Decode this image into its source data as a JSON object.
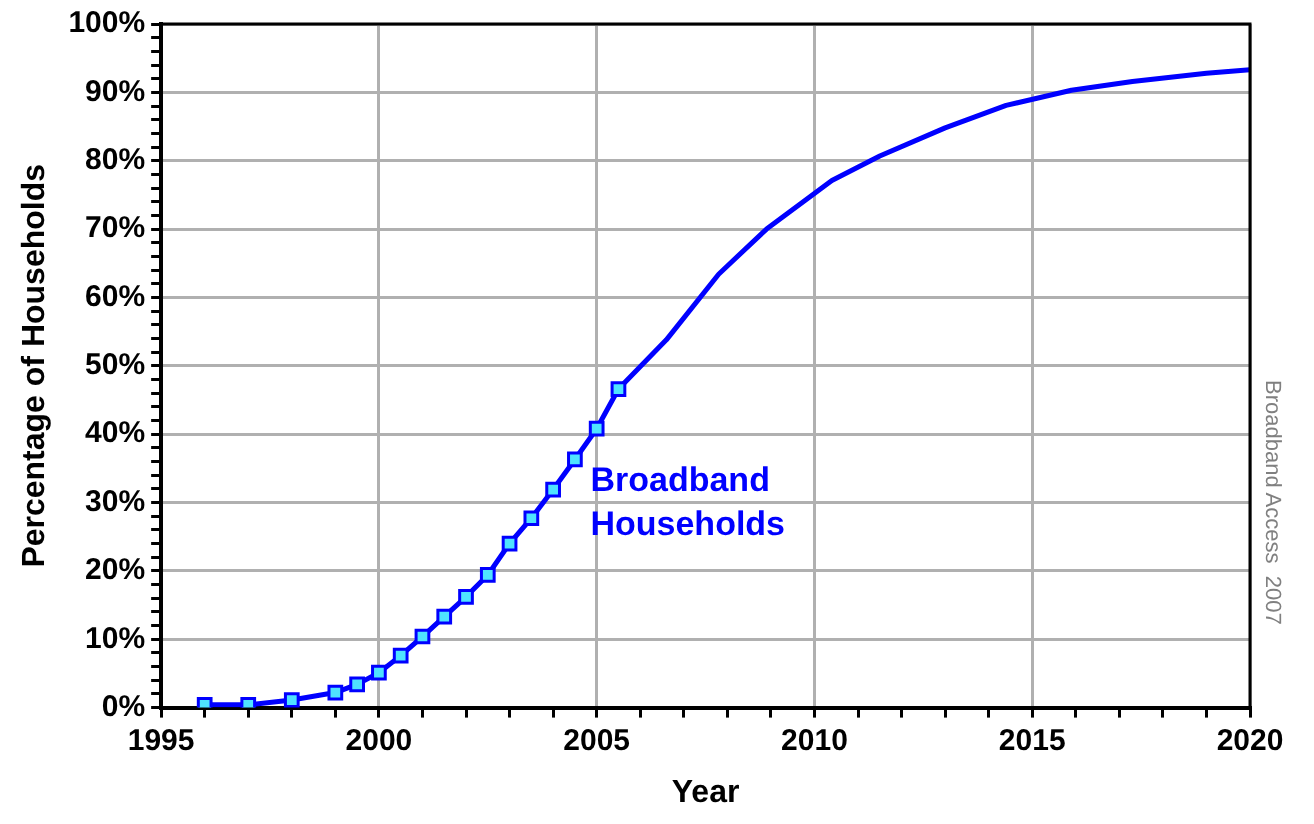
{
  "chart_data": {
    "type": "line",
    "xlabel": "Year",
    "ylabel": "Percentage of Households",
    "annotations": [
      "Broadband Access  2007"
    ],
    "xlim": [
      1995,
      2020
    ],
    "xticks": [
      1995,
      {
        "value": 1996,
        "label": null
      },
      {
        "value": 1997,
        "label": null
      },
      {
        "value": 1998,
        "label": null
      },
      {
        "value": 1999,
        "label": null
      },
      2000,
      {
        "value": 2001,
        "label": null
      },
      {
        "value": 2002,
        "label": null
      },
      {
        "value": 2003,
        "label": null
      },
      {
        "value": 2004,
        "label": null
      },
      2005,
      {
        "value": 2006,
        "label": null
      },
      {
        "value": 2007,
        "label": null
      },
      {
        "value": 2008,
        "label": null
      },
      {
        "value": 2009,
        "label": null
      },
      2010,
      {
        "value": 2011,
        "label": null
      },
      {
        "value": 2012,
        "label": null
      },
      {
        "value": 2013,
        "label": null
      },
      {
        "value": 2014,
        "label": null
      },
      2015,
      {
        "value": 2016,
        "label": null
      },
      {
        "value": 2017,
        "label": null
      },
      {
        "value": 2018,
        "label": null
      },
      {
        "value": 2019,
        "label": null
      },
      2020
    ],
    "ylim": [
      0,
      100
    ],
    "yticks": [
      {
        "value": 0,
        "label": "0%"
      },
      {
        "value": 2,
        "label": null
      },
      {
        "value": 4,
        "label": null
      },
      {
        "value": 6,
        "label": null
      },
      {
        "value": 8,
        "label": null
      },
      {
        "value": 10,
        "label": "10%"
      },
      {
        "value": 12,
        "label": null
      },
      {
        "value": 14,
        "label": null
      },
      {
        "value": 16,
        "label": null
      },
      {
        "value": 18,
        "label": null
      },
      {
        "value": 20,
        "label": "20%"
      },
      {
        "value": 22,
        "label": null
      },
      {
        "value": 24,
        "label": null
      },
      {
        "value": 26,
        "label": null
      },
      {
        "value": 28,
        "label": null
      },
      {
        "value": 30,
        "label": "30%"
      },
      {
        "value": 32,
        "label": null
      },
      {
        "value": 34,
        "label": null
      },
      {
        "value": 36,
        "label": null
      },
      {
        "value": 38,
        "label": null
      },
      {
        "value": 40,
        "label": "40%"
      },
      {
        "value": 42,
        "label": null
      },
      {
        "value": 44,
        "label": null
      },
      {
        "value": 46,
        "label": null
      },
      {
        "value": 48,
        "label": null
      },
      {
        "value": 50,
        "label": "50%"
      },
      {
        "value": 52,
        "label": null
      },
      {
        "value": 54,
        "label": null
      },
      {
        "value": 56,
        "label": null
      },
      {
        "value": 58,
        "label": null
      },
      {
        "value": 60,
        "label": "60%"
      },
      {
        "value": 62,
        "label": null
      },
      {
        "value": 64,
        "label": null
      },
      {
        "value": 66,
        "label": null
      },
      {
        "value": 68,
        "label": null
      },
      {
        "value": 70,
        "label": "70%"
      },
      {
        "value": 72,
        "label": null
      },
      {
        "value": 74,
        "label": null
      },
      {
        "value": 76,
        "label": null
      },
      {
        "value": 78,
        "label": null
      },
      {
        "value": 80,
        "label": "80%"
      },
      {
        "value": 82,
        "label": null
      },
      {
        "value": 84,
        "label": null
      },
      {
        "value": 86,
        "label": null
      },
      {
        "value": 88,
        "label": null
      },
      {
        "value": 90,
        "label": "90%"
      },
      {
        "value": 92,
        "label": null
      },
      {
        "value": 94,
        "label": null
      },
      {
        "value": 96,
        "label": null
      },
      {
        "value": 98,
        "label": null
      },
      {
        "value": 100,
        "label": "100%"
      }
    ],
    "grid": true,
    "legend": false,
    "series": [
      {
        "name": "Broadband Households",
        "color": "#0000ff",
        "marker": "square",
        "x": [
          1996,
          1997,
          1998,
          1999,
          1999.5,
          2000,
          2000.5,
          2001,
          2001.5,
          2002,
          2002.5,
          2003,
          2003.5,
          2004,
          2004.5,
          2005,
          2005.5
        ],
        "values": [
          0.4,
          0.4,
          1.1,
          2.2,
          3.4,
          5.1,
          7.6,
          10.4,
          13.3,
          16.2,
          19.4,
          24.0,
          27.7,
          31.9,
          36.3,
          40.8,
          46.6
        ]
      },
      {
        "color": "#0000ff",
        "marker": "none",
        "x": [
          2005.5,
          2006.6,
          2007.8,
          2008.9,
          2010.4,
          2011.5,
          2013,
          2014.4,
          2015.9,
          2017.3,
          2019,
          2020
        ],
        "values": [
          46.6,
          53.8,
          63.4,
          70.0,
          77.1,
          80.7,
          84.8,
          88.1,
          90.3,
          91.6,
          92.8,
          93.3
        ]
      }
    ]
  }
}
